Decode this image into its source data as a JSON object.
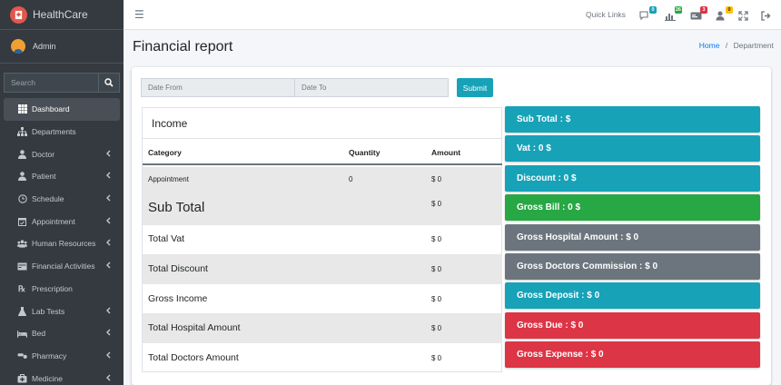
{
  "app": {
    "brand": "HealthCare"
  },
  "user": {
    "name": "Admin"
  },
  "sidebar": {
    "search_placeholder": "Search",
    "items": [
      {
        "label": "Dashboard",
        "icon": "grid-icon",
        "active": true,
        "has_chevron": false
      },
      {
        "label": "Departments",
        "icon": "sitemap-icon",
        "has_chevron": false
      },
      {
        "label": "Doctor",
        "icon": "user-md-icon",
        "has_chevron": true
      },
      {
        "label": "Patient",
        "icon": "user-icon",
        "has_chevron": true
      },
      {
        "label": "Schedule",
        "icon": "clock-icon",
        "has_chevron": true
      },
      {
        "label": "Appointment",
        "icon": "calendar-check-icon",
        "has_chevron": true
      },
      {
        "label": "Human Resources",
        "icon": "users-icon",
        "has_chevron": true
      },
      {
        "label": "Financial Activities",
        "icon": "money-icon",
        "has_chevron": true
      },
      {
        "label": "Prescription",
        "icon": "prescription-icon",
        "has_chevron": false
      },
      {
        "label": "Lab Tests",
        "icon": "flask-icon",
        "has_chevron": true
      },
      {
        "label": "Bed",
        "icon": "bed-icon",
        "has_chevron": true
      },
      {
        "label": "Pharmacy",
        "icon": "pills-icon",
        "has_chevron": true
      },
      {
        "label": "Medicine",
        "icon": "medkit-icon",
        "has_chevron": true
      }
    ]
  },
  "topbar": {
    "quick_links": "Quick Links",
    "badges": [
      {
        "icon": "comments-icon",
        "count": "0",
        "color": "#17a2b8"
      },
      {
        "icon": "chart-icon",
        "count": "26",
        "color": "#28a745"
      },
      {
        "icon": "id-card-icon",
        "count": "3",
        "color": "#dc3545"
      },
      {
        "icon": "user-plus-icon",
        "count": "0",
        "color": "#ffc107"
      }
    ]
  },
  "page": {
    "title": "Financial report"
  },
  "breadcrumb": {
    "home": "Home",
    "separator": "/",
    "current": "Department"
  },
  "filters": {
    "date_from_placeholder": "Date From",
    "date_to_placeholder": "Date To",
    "submit_label": "Submit"
  },
  "income": {
    "title": "Income",
    "columns": {
      "category": "Category",
      "quantity": "Quantity",
      "amount": "Amount"
    },
    "appointment": {
      "category": "Appointment",
      "quantity": "0",
      "amount": "$ 0"
    },
    "sub_total": {
      "label": "Sub Total",
      "amount": "$ 0"
    },
    "total_vat": {
      "label": "Total Vat",
      "amount": "$ 0"
    },
    "total_discount": {
      "label": "Total Discount",
      "amount": "$ 0"
    },
    "gross_income": {
      "label": "Gross Income",
      "amount": "$ 0"
    },
    "total_hospital": {
      "label": "Total Hospital Amount",
      "amount": "$ 0"
    },
    "total_doctors": {
      "label": "Total Doctors Amount",
      "amount": "$ 0"
    }
  },
  "summary": [
    {
      "label": "Sub Total : $",
      "color": "#17a2b8"
    },
    {
      "label": "Vat : 0 $",
      "color": "#17a2b8"
    },
    {
      "label": "Discount : 0 $",
      "color": "#17a2b8"
    },
    {
      "label": "Gross Bill : 0 $",
      "color": "#28a745"
    },
    {
      "label": "Gross Hospital Amount : $ 0",
      "color": "#6c757d"
    },
    {
      "label": "Gross Doctors Commission : $ 0",
      "color": "#6c757d"
    },
    {
      "label": "Gross Deposit : $ 0",
      "color": "#17a2b8"
    },
    {
      "label": "Gross Due : $ 0",
      "color": "#dc3545"
    },
    {
      "label": "Gross Expense : $ 0",
      "color": "#dc3545"
    }
  ]
}
